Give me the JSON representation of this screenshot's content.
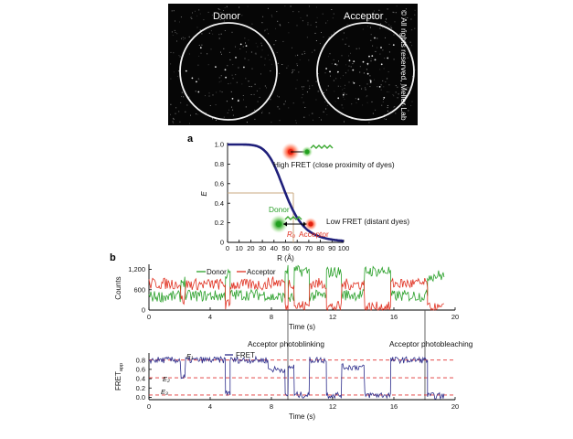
{
  "microscopy": {
    "donor_label": "Donor",
    "acceptor_label": "Acceptor",
    "copyright": "© All rights reserved, Meller Lab"
  },
  "panel_a": {
    "letter": "a",
    "annot_high": "High FRET (close proximity of dyes)",
    "annot_low": "Low FRET (distant dyes)",
    "annot_donor": "Donor",
    "annot_acceptor": "Acceptor",
    "annot_r0": "R₀"
  },
  "panel_b": {
    "letter": "b",
    "annot_blinking": "Acceptor photoblinking",
    "annot_bleaching": "Acceptor photobleaching",
    "e1": "E₁",
    "e2": "E₂",
    "e3": "E₃"
  },
  "colors": {
    "efficiency_curve": "#1f1f7a",
    "donor": "#2aa02a",
    "acceptor": "#e03020",
    "fret": "#2b2b8a",
    "guide": "#c8a880",
    "level_lines": "#e03030"
  },
  "chart_data": [
    {
      "type": "line",
      "xlabel": "R (Å)",
      "ylabel": "E",
      "xlim": [
        0,
        100
      ],
      "ylim": [
        0,
        1.0
      ],
      "xticks": [
        "0",
        "10",
        "20",
        "30",
        "40",
        "50",
        "60",
        "70",
        "80",
        "90",
        "100"
      ],
      "yticks": [
        "0",
        "0.2",
        "0.4",
        "0.6",
        "0.8",
        "1.0"
      ],
      "R0": 50,
      "series": [
        {
          "x": [
            0,
            10,
            20,
            25,
            30,
            35,
            40,
            45,
            50,
            55,
            60,
            65,
            70,
            80,
            90,
            100
          ],
          "values": [
            1.0,
            1.0,
            0.996,
            0.985,
            0.956,
            0.894,
            0.792,
            0.65,
            0.5,
            0.36,
            0.251,
            0.172,
            0.116,
            0.056,
            0.03,
            0.015
          ]
        }
      ]
    },
    {
      "type": "line",
      "xlabel": "Time (s)",
      "ylabel": "Counts",
      "xlim": [
        0,
        20
      ],
      "ylim": [
        0,
        1350
      ],
      "xticks": [
        "0",
        "4",
        "8",
        "12",
        "16",
        "20"
      ],
      "yticks": [
        "0",
        "600",
        "1,200"
      ],
      "legend": "top-center",
      "series": [
        {
          "name": "Donor",
          "segments": [
            [
              0,
              2.1,
              400
            ],
            [
              2.1,
              2.4,
              850
            ],
            [
              2.4,
              5.0,
              420
            ],
            [
              5.0,
              5.3,
              1050
            ],
            [
              5.3,
              7.8,
              450
            ],
            [
              7.8,
              8.9,
              380
            ],
            [
              8.9,
              9.1,
              1180
            ],
            [
              9.1,
              9.5,
              350
            ],
            [
              9.5,
              10.5,
              1150
            ],
            [
              10.5,
              11.6,
              420
            ],
            [
              11.6,
              12.6,
              1120
            ],
            [
              12.6,
              14.1,
              450
            ],
            [
              14.1,
              15.8,
              1150
            ],
            [
              15.8,
              18.2,
              420
            ],
            [
              18.2,
              19.3,
              1020
            ]
          ]
        },
        {
          "name": "Acceptor",
          "segments": [
            [
              0,
              2.1,
              780
            ],
            [
              2.1,
              2.4,
              300
            ],
            [
              2.4,
              5.0,
              760
            ],
            [
              5.0,
              5.3,
              150
            ],
            [
              5.3,
              7.8,
              750
            ],
            [
              7.8,
              8.9,
              820
            ],
            [
              8.9,
              9.1,
              60
            ],
            [
              9.1,
              9.5,
              800
            ],
            [
              9.5,
              10.5,
              120
            ],
            [
              10.5,
              11.6,
              780
            ],
            [
              11.6,
              12.6,
              90
            ],
            [
              12.6,
              14.1,
              760
            ],
            [
              14.1,
              15.8,
              80
            ],
            [
              15.8,
              18.2,
              780
            ],
            [
              18.2,
              19.3,
              40
            ]
          ]
        }
      ]
    },
    {
      "type": "line",
      "xlabel": "Time (s)",
      "ylabel": "FRET_app",
      "xlim": [
        0,
        20
      ],
      "ylim": [
        -0.05,
        0.95
      ],
      "xticks": [
        "0",
        "4",
        "8",
        "12",
        "16",
        "20"
      ],
      "yticks": [
        "0.0",
        "0.2",
        "0.4",
        "0.6",
        "0.8"
      ],
      "levels": [
        0.8,
        0.42,
        0.05
      ],
      "series": [
        {
          "name": "FRET",
          "segments": [
            [
              0,
              2.1,
              0.8
            ],
            [
              2.1,
              2.4,
              0.42
            ],
            [
              2.4,
              5.0,
              0.8
            ],
            [
              5.0,
              5.3,
              0.1
            ],
            [
              5.3,
              7.8,
              0.8
            ],
            [
              7.8,
              8.9,
              0.6
            ],
            [
              8.9,
              9.1,
              0.02
            ],
            [
              9.1,
              9.5,
              0.65
            ],
            [
              9.5,
              10.5,
              0.05
            ],
            [
              10.5,
              11.6,
              0.8
            ],
            [
              11.6,
              12.6,
              0.05
            ],
            [
              12.6,
              14.1,
              0.65
            ],
            [
              14.1,
              15.8,
              0.05
            ],
            [
              15.8,
              18.2,
              0.8
            ],
            [
              18.2,
              19.3,
              0.03
            ]
          ]
        }
      ]
    }
  ]
}
